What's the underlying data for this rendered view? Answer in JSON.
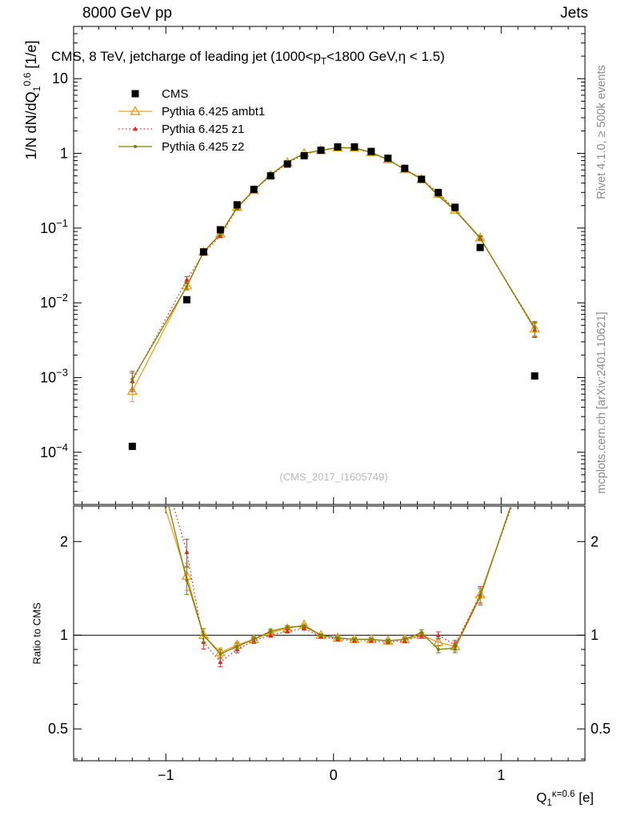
{
  "header": {
    "left": "8000 GeV pp",
    "right": "Jets"
  },
  "title": {
    "pre": "CMS, 8 TeV, jetcharge of leading jet (1000<p",
    "sub": "T",
    "post": "<1800 GeV,η < 1.5)"
  },
  "axis_labels": {
    "y_pre": "1/N dN/dQ",
    "y_sub": "1",
    "y_sup": "0.6",
    "y_post": " [1/e]",
    "x_pre": "Q",
    "x_sub": "1",
    "x_sup": "κ=0.6",
    "x_post": " [e]",
    "ratio": "Ratio to CMS"
  },
  "side_notes": {
    "right_top": "Rivet 4.1.0, ≥ 500k events",
    "right_bottom": "mcplots.cern.ch [arXiv:2401.10621]"
  },
  "watermark": "(CMS_2017_I1605749)",
  "chart_data": {
    "type": "line",
    "title": "CMS, 8 TeV, jetcharge of leading jet (1000<pT<1800 GeV, eta < 1.5)",
    "xlabel": "Q1 (kappa=0.6) [e]",
    "ylabel": "1/N dN/dQ1^0.6 [1/e]",
    "ratio_label": "Ratio to CMS",
    "grid": false,
    "legend_position": "top-left",
    "xlim": [
      -1.55,
      1.5
    ],
    "main_ylim": [
      2e-05,
      50
    ],
    "ratio_ylim": [
      0.395,
      2.6
    ],
    "x_ticks": [
      -1,
      0,
      1
    ],
    "ratio_yticks": [
      0.5,
      1,
      2
    ],
    "ratio_minor_ticks": [
      0.4,
      0.6,
      0.7,
      0.8,
      0.9
    ],
    "x": [
      -1.2,
      -0.875,
      -0.775,
      -0.675,
      -0.575,
      -0.475,
      -0.375,
      -0.275,
      -0.175,
      -0.075,
      0.025,
      0.125,
      0.225,
      0.325,
      0.425,
      0.525,
      0.625,
      0.725,
      0.875,
      1.2
    ],
    "err_frac": [
      0.28,
      0.1,
      0.05,
      0.035,
      0.025,
      0.02,
      0.015,
      0.012,
      0.01,
      0.01,
      0.01,
      0.01,
      0.01,
      0.012,
      0.015,
      0.02,
      0.025,
      0.035,
      0.06,
      0.22
    ],
    "series": [
      {
        "name": "CMS",
        "color": "#000000",
        "marker": "square",
        "line": null,
        "values": [
          0.00012,
          0.011,
          0.048,
          0.095,
          0.205,
          0.33,
          0.5,
          0.72,
          0.93,
          1.1,
          1.22,
          1.22,
          1.06,
          0.86,
          0.63,
          0.45,
          0.3,
          0.19,
          0.055,
          0.00105
        ]
      },
      {
        "name": "Pythia 6.425 ambt1",
        "color": "#e8a020",
        "marker": "triangle-open",
        "line": "solid",
        "values": [
          0.00066,
          0.017,
          0.048,
          0.084,
          0.191,
          0.32,
          0.51,
          0.756,
          1.004,
          1.1,
          1.196,
          1.183,
          1.028,
          0.826,
          0.611,
          0.45,
          0.285,
          0.175,
          0.0743,
          0.0045
        ],
        "ratio": [
          5.5,
          1.55,
          1.0,
          0.88,
          0.93,
          0.97,
          1.02,
          1.05,
          1.08,
          1.0,
          0.98,
          0.97,
          0.97,
          0.96,
          0.97,
          1.0,
          0.95,
          0.92,
          1.35,
          4.3
        ]
      },
      {
        "name": "Pythia 6.425 z1",
        "color": "#d42a2a",
        "marker": "triangle-small",
        "line": "dotted",
        "values": [
          0.0009,
          0.0204,
          0.0456,
          0.0779,
          0.1845,
          0.3168,
          0.5,
          0.7416,
          0.9765,
          1.089,
          1.1834,
          1.1712,
          1.0176,
          0.817,
          0.6048,
          0.45,
          0.3,
          0.1767,
          0.0743,
          0.0044
        ],
        "ratio": [
          7.5,
          1.85,
          0.95,
          0.82,
          0.9,
          0.96,
          1.0,
          1.03,
          1.05,
          0.99,
          0.97,
          0.96,
          0.96,
          0.95,
          0.96,
          1.0,
          1.0,
          0.93,
          1.35,
          4.2
        ]
      },
      {
        "name": "Pythia 6.425 z2",
        "color": "#808000",
        "marker": "dot",
        "line": "solid",
        "values": [
          0.00095,
          0.0165,
          0.048,
          0.0827,
          0.1886,
          0.3201,
          0.515,
          0.7632,
          0.9951,
          1.1,
          1.1956,
          1.1834,
          1.0282,
          0.8256,
          0.6111,
          0.459,
          0.27,
          0.1729,
          0.0732,
          0.0046
        ],
        "ratio": [
          7.9,
          1.5,
          1.0,
          0.87,
          0.92,
          0.97,
          1.03,
          1.06,
          1.07,
          1.0,
          0.98,
          0.97,
          0.97,
          0.96,
          0.97,
          1.02,
          0.9,
          0.91,
          1.33,
          4.4
        ]
      }
    ]
  }
}
